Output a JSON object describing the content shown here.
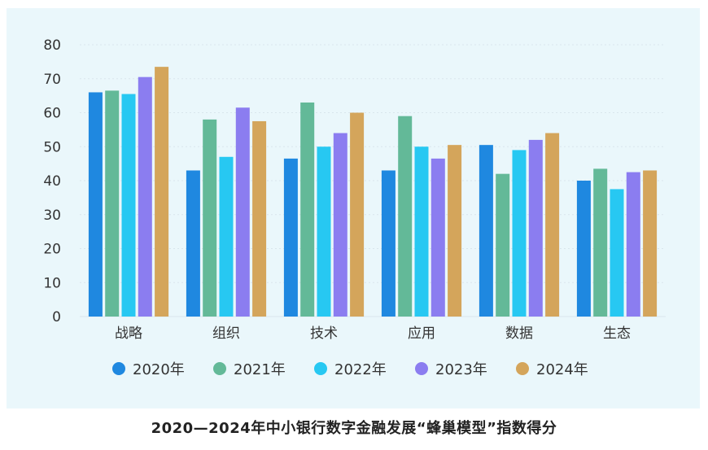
{
  "caption": "2020—2024年中小银行数字金融发展“蜂巢模型”指数得分",
  "chart_data": {
    "type": "bar",
    "title": "2020—2024年中小银行数字金融发展“蜂巢模型”指数得分",
    "xlabel": "",
    "ylabel": "",
    "ylim": [
      0,
      80
    ],
    "yticks": [
      0,
      10,
      20,
      30,
      40,
      50,
      60,
      70,
      80
    ],
    "grid": true,
    "legend_position": "bottom",
    "categories": [
      "战略",
      "组织",
      "技术",
      "应用",
      "数据",
      "生态"
    ],
    "series": [
      {
        "name": "2020年",
        "color": "#1f88e0",
        "values": [
          66,
          43,
          46.5,
          43,
          50.5,
          40
        ]
      },
      {
        "name": "2021年",
        "color": "#63b998",
        "values": [
          66.5,
          58,
          63,
          59,
          42,
          43.5
        ]
      },
      {
        "name": "2022年",
        "color": "#27c8f2",
        "values": [
          65.5,
          47,
          50,
          50,
          49,
          37.5
        ]
      },
      {
        "name": "2023年",
        "color": "#8b7df0",
        "values": [
          70.5,
          61.5,
          54,
          46.5,
          52,
          42.5
        ]
      },
      {
        "name": "2024年",
        "color": "#d4a55b",
        "values": [
          73.5,
          57.5,
          60,
          50.5,
          54,
          43
        ]
      }
    ]
  }
}
